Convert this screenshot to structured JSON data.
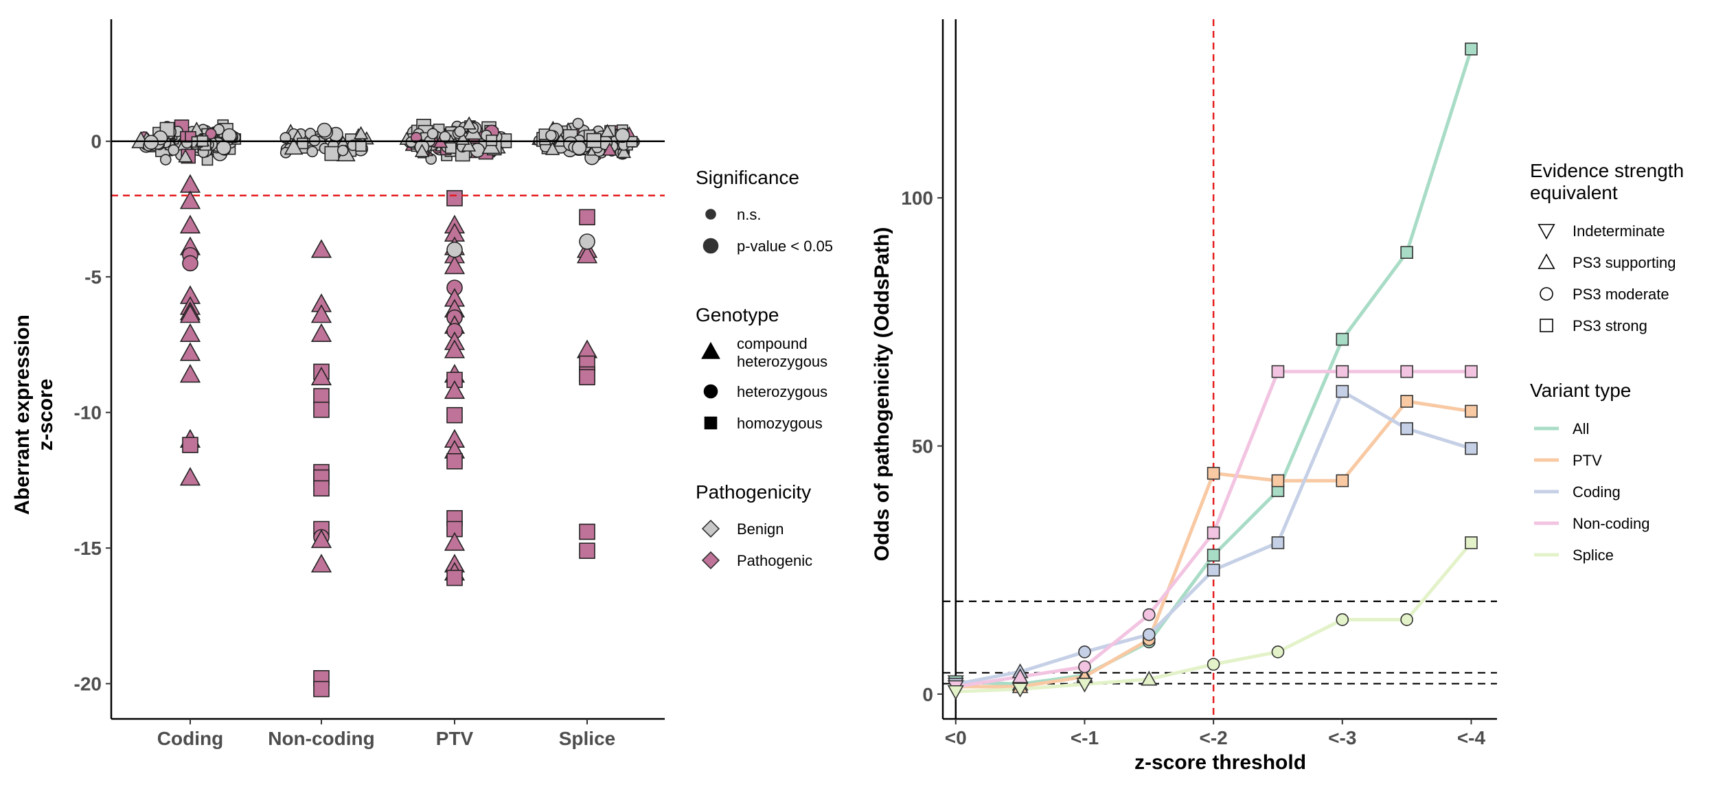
{
  "chart_data": [
    {
      "type": "scatter",
      "subtype": "beeswarm",
      "categories": [
        "Coding",
        "Non-coding",
        "PTV",
        "Splice"
      ],
      "ylabel": "Aberrant expression\nz-score",
      "xlabel": "",
      "ylim": [
        -21.3,
        4.5
      ],
      "yticks": [
        0,
        -5,
        -10,
        -15,
        -20
      ],
      "reference_line_y": 0,
      "threshold_line_y": -2,
      "threshold_color": "#e41a1c",
      "benign_color": "#c8c8c8",
      "pathogenic_color": "#c07398",
      "near_zero_clusters": [
        {
          "category": "Coding",
          "count": 120,
          "min": -2.2,
          "max": 2.3
        },
        {
          "category": "Non-coding",
          "count": 45,
          "min": -1.8,
          "max": 2.8
        },
        {
          "category": "PTV",
          "count": 150,
          "min": -1.8,
          "max": 3.3
        },
        {
          "category": "Splice",
          "count": 110,
          "min": -2.4,
          "max": 3.3
        }
      ],
      "pathogenic_outliers": [
        {
          "category": "Coding",
          "z": -1.6,
          "shape": "triangle",
          "size": "large"
        },
        {
          "category": "Coding",
          "z": -2.2,
          "shape": "triangle",
          "size": "large"
        },
        {
          "category": "Coding",
          "z": -3.1,
          "shape": "triangle",
          "size": "large"
        },
        {
          "category": "Coding",
          "z": -3.9,
          "shape": "triangle",
          "size": "large"
        },
        {
          "category": "Coding",
          "z": -4.2,
          "shape": "circle",
          "size": "large"
        },
        {
          "category": "Coding",
          "z": -4.5,
          "shape": "circle",
          "size": "large"
        },
        {
          "category": "Coding",
          "z": -5.7,
          "shape": "triangle",
          "size": "large"
        },
        {
          "category": "Coding",
          "z": -6.1,
          "shape": "triangle",
          "size": "large"
        },
        {
          "category": "Coding",
          "z": -6.3,
          "shape": "triangle",
          "size": "large"
        },
        {
          "category": "Coding",
          "z": -6.4,
          "shape": "triangle",
          "size": "large"
        },
        {
          "category": "Coding",
          "z": -7.1,
          "shape": "triangle",
          "size": "large"
        },
        {
          "category": "Coding",
          "z": -7.8,
          "shape": "triangle",
          "size": "large"
        },
        {
          "category": "Coding",
          "z": -8.6,
          "shape": "triangle",
          "size": "large"
        },
        {
          "category": "Coding",
          "z": -11.0,
          "shape": "triangle",
          "size": "large"
        },
        {
          "category": "Coding",
          "z": -11.2,
          "shape": "square",
          "size": "large"
        },
        {
          "category": "Coding",
          "z": -12.4,
          "shape": "triangle",
          "size": "large"
        },
        {
          "category": "Non-coding",
          "z": -4.0,
          "shape": "triangle",
          "size": "large"
        },
        {
          "category": "Non-coding",
          "z": -6.0,
          "shape": "triangle",
          "size": "large"
        },
        {
          "category": "Non-coding",
          "z": -6.4,
          "shape": "triangle",
          "size": "large"
        },
        {
          "category": "Non-coding",
          "z": -7.1,
          "shape": "triangle",
          "size": "large"
        },
        {
          "category": "Non-coding",
          "z": -8.5,
          "shape": "square",
          "size": "large"
        },
        {
          "category": "Non-coding",
          "z": -8.7,
          "shape": "triangle",
          "size": "large"
        },
        {
          "category": "Non-coding",
          "z": -9.4,
          "shape": "square",
          "size": "large"
        },
        {
          "category": "Non-coding",
          "z": -9.9,
          "shape": "square",
          "size": "large"
        },
        {
          "category": "Non-coding",
          "z": -12.2,
          "shape": "square",
          "size": "large"
        },
        {
          "category": "Non-coding",
          "z": -12.4,
          "shape": "square",
          "size": "large"
        },
        {
          "category": "Non-coding",
          "z": -12.8,
          "shape": "square",
          "size": "large"
        },
        {
          "category": "Non-coding",
          "z": -14.3,
          "shape": "square",
          "size": "large"
        },
        {
          "category": "Non-coding",
          "z": -14.6,
          "shape": "circle",
          "size": "large"
        },
        {
          "category": "Non-coding",
          "z": -14.7,
          "shape": "triangle",
          "size": "large"
        },
        {
          "category": "Non-coding",
          "z": -15.6,
          "shape": "triangle",
          "size": "large"
        },
        {
          "category": "Non-coding",
          "z": -19.8,
          "shape": "square",
          "size": "large"
        },
        {
          "category": "Non-coding",
          "z": -20.2,
          "shape": "square",
          "size": "large"
        },
        {
          "category": "PTV",
          "z": -2.1,
          "shape": "square",
          "size": "large"
        },
        {
          "category": "PTV",
          "z": -3.1,
          "shape": "triangle",
          "size": "large"
        },
        {
          "category": "PTV",
          "z": -3.4,
          "shape": "triangle",
          "size": "large"
        },
        {
          "category": "PTV",
          "z": -3.9,
          "shape": "triangle",
          "size": "large"
        },
        {
          "category": "PTV",
          "z": -4.2,
          "shape": "triangle",
          "size": "large"
        },
        {
          "category": "PTV",
          "z": -4.6,
          "shape": "triangle",
          "size": "large"
        },
        {
          "category": "PTV",
          "z": -5.4,
          "shape": "circle",
          "size": "large"
        },
        {
          "category": "PTV",
          "z": -5.8,
          "shape": "triangle",
          "size": "large"
        },
        {
          "category": "PTV",
          "z": -6.2,
          "shape": "triangle",
          "size": "large"
        },
        {
          "category": "PTV",
          "z": -6.5,
          "shape": "circle",
          "size": "large"
        },
        {
          "category": "PTV",
          "z": -6.8,
          "shape": "triangle",
          "size": "large"
        },
        {
          "category": "PTV",
          "z": -7.0,
          "shape": "circle",
          "size": "large"
        },
        {
          "category": "PTV",
          "z": -7.4,
          "shape": "triangle",
          "size": "large"
        },
        {
          "category": "PTV",
          "z": -7.7,
          "shape": "triangle",
          "size": "large"
        },
        {
          "category": "PTV",
          "z": -8.6,
          "shape": "triangle",
          "size": "large"
        },
        {
          "category": "PTV",
          "z": -8.8,
          "shape": "square",
          "size": "large"
        },
        {
          "category": "PTV",
          "z": -9.2,
          "shape": "triangle",
          "size": "large"
        },
        {
          "category": "PTV",
          "z": -10.1,
          "shape": "square",
          "size": "large"
        },
        {
          "category": "PTV",
          "z": -11.0,
          "shape": "triangle",
          "size": "large"
        },
        {
          "category": "PTV",
          "z": -11.4,
          "shape": "triangle",
          "size": "large"
        },
        {
          "category": "PTV",
          "z": -11.8,
          "shape": "square",
          "size": "large"
        },
        {
          "category": "PTV",
          "z": -13.9,
          "shape": "square",
          "size": "large"
        },
        {
          "category": "PTV",
          "z": -14.3,
          "shape": "square",
          "size": "large"
        },
        {
          "category": "PTV",
          "z": -14.8,
          "shape": "triangle",
          "size": "large"
        },
        {
          "category": "PTV",
          "z": -15.6,
          "shape": "triangle",
          "size": "large"
        },
        {
          "category": "PTV",
          "z": -15.9,
          "shape": "triangle",
          "size": "large"
        },
        {
          "category": "PTV",
          "z": -16.1,
          "shape": "square",
          "size": "large"
        },
        {
          "category": "Splice",
          "z": -2.8,
          "shape": "square",
          "size": "large"
        },
        {
          "category": "Splice",
          "z": -4.0,
          "shape": "triangle",
          "size": "large"
        },
        {
          "category": "Splice",
          "z": -4.2,
          "shape": "triangle",
          "size": "large"
        },
        {
          "category": "Splice",
          "z": -7.7,
          "shape": "triangle",
          "size": "large"
        },
        {
          "category": "Splice",
          "z": -8.2,
          "shape": "square",
          "size": "large"
        },
        {
          "category": "Splice",
          "z": -8.6,
          "shape": "square",
          "size": "large"
        },
        {
          "category": "Splice",
          "z": -8.7,
          "shape": "square",
          "size": "large"
        },
        {
          "category": "Splice",
          "z": -14.4,
          "shape": "square",
          "size": "large"
        },
        {
          "category": "Splice",
          "z": -15.1,
          "shape": "square",
          "size": "large"
        }
      ],
      "benign_outliers": [
        {
          "category": "Splice",
          "z": -3.7,
          "shape": "circle",
          "size": "large"
        },
        {
          "category": "PTV",
          "z": -4.0,
          "shape": "circle",
          "size": "large"
        }
      ],
      "legends": [
        {
          "title": "Significance",
          "entries": [
            {
              "label": "n.s.",
              "shape": "circle-small"
            },
            {
              "label": "p-value < 0.05",
              "shape": "circle-large"
            }
          ]
        },
        {
          "title": "Genotype",
          "entries": [
            {
              "label": "compound\nheterozygous",
              "shape": "triangle-filled"
            },
            {
              "label": "heterozygous",
              "shape": "circle-filled"
            },
            {
              "label": "homozygous",
              "shape": "square-filled"
            }
          ]
        },
        {
          "title": "Pathogenicity",
          "entries": [
            {
              "label": "Benign",
              "shape": "diamond",
              "color": "#c8c8c8"
            },
            {
              "label": "Pathogenic",
              "shape": "diamond",
              "color": "#c07398"
            }
          ]
        }
      ]
    },
    {
      "type": "line",
      "xlabel": "z-score threshold",
      "ylabel": "Odds of pathogenicity (OddsPath)",
      "x": [
        0,
        -0.5,
        -1,
        -1.5,
        -2,
        -2.5,
        -3,
        -3.5,
        -4
      ],
      "xtick_values": [
        0,
        -1,
        -2,
        -3,
        -4
      ],
      "xtick_labels": [
        "<0",
        "<-1",
        "<-2",
        "<-3",
        "<-4"
      ],
      "xlim": [
        0.1,
        -4.2
      ],
      "ylim": [
        -5,
        136
      ],
      "yticks": [
        0,
        50,
        100
      ],
      "vertical_line_x": -2,
      "vertical_line_color": "#e41a1c",
      "horizontal_dashed_lines": [
        2.1,
        4.3,
        18.7
      ],
      "series": [
        {
          "name": "All",
          "color": "#a8dcc6",
          "values": [
            2.5,
            2.0,
            3.8,
            10.5,
            28.0,
            41.0,
            71.5,
            89.0,
            130.0
          ],
          "markers": [
            "triangle-down",
            "triangle-up",
            "triangle-up",
            "circle",
            "square",
            "square",
            "square",
            "square",
            "square"
          ]
        },
        {
          "name": "PTV",
          "color": "#f8c9a3",
          "values": [
            1.5,
            1.5,
            3.5,
            11.0,
            44.5,
            43.0,
            43.0,
            59.0,
            57.0
          ],
          "markers": [
            "triangle-down",
            "triangle-up",
            "triangle-up",
            "circle",
            "square",
            "square",
            "square",
            "square",
            "square"
          ]
        },
        {
          "name": "Coding",
          "color": "#c5d0e6",
          "values": [
            2.0,
            4.5,
            8.5,
            12.0,
            25.0,
            30.5,
            61.0,
            53.5,
            49.5
          ],
          "markers": [
            "triangle-down",
            "triangle-up",
            "circle",
            "circle",
            "square",
            "square",
            "square",
            "square",
            "square"
          ]
        },
        {
          "name": "Non-coding",
          "color": "#f2c4e1",
          "values": [
            1.5,
            3.5,
            5.5,
            16.0,
            32.5,
            65.0,
            65.0,
            65.0,
            65.0
          ],
          "markers": [
            "triangle-down",
            "triangle-up",
            "circle",
            "circle",
            "square",
            "square",
            "square",
            "square",
            "square"
          ]
        },
        {
          "name": "Splice",
          "color": "#e3f2c8",
          "values": [
            0.5,
            1.0,
            2.0,
            3.0,
            6.0,
            8.5,
            15.0,
            15.0,
            30.5
          ],
          "markers": [
            "triangle-down",
            "triangle-down",
            "triangle-down",
            "triangle-up",
            "circle",
            "circle",
            "circle",
            "circle",
            "square"
          ]
        }
      ],
      "legends": [
        {
          "title": "Evidence strength\nequivalent",
          "entries": [
            {
              "label": "Indeterminate",
              "shape": "triangle-down-open"
            },
            {
              "label": "PS3 supporting",
              "shape": "triangle-up-open"
            },
            {
              "label": "PS3 moderate",
              "shape": "circle-open"
            },
            {
              "label": "PS3 strong",
              "shape": "square-open"
            }
          ]
        },
        {
          "title": "Variant type",
          "entries": [
            {
              "label": "All",
              "color": "#a8dcc6"
            },
            {
              "label": "PTV",
              "color": "#f8c9a3"
            },
            {
              "label": "Coding",
              "color": "#c5d0e6"
            },
            {
              "label": "Non-coding",
              "color": "#f2c4e1"
            },
            {
              "label": "Splice",
              "color": "#e3f2c8"
            }
          ]
        }
      ]
    }
  ]
}
